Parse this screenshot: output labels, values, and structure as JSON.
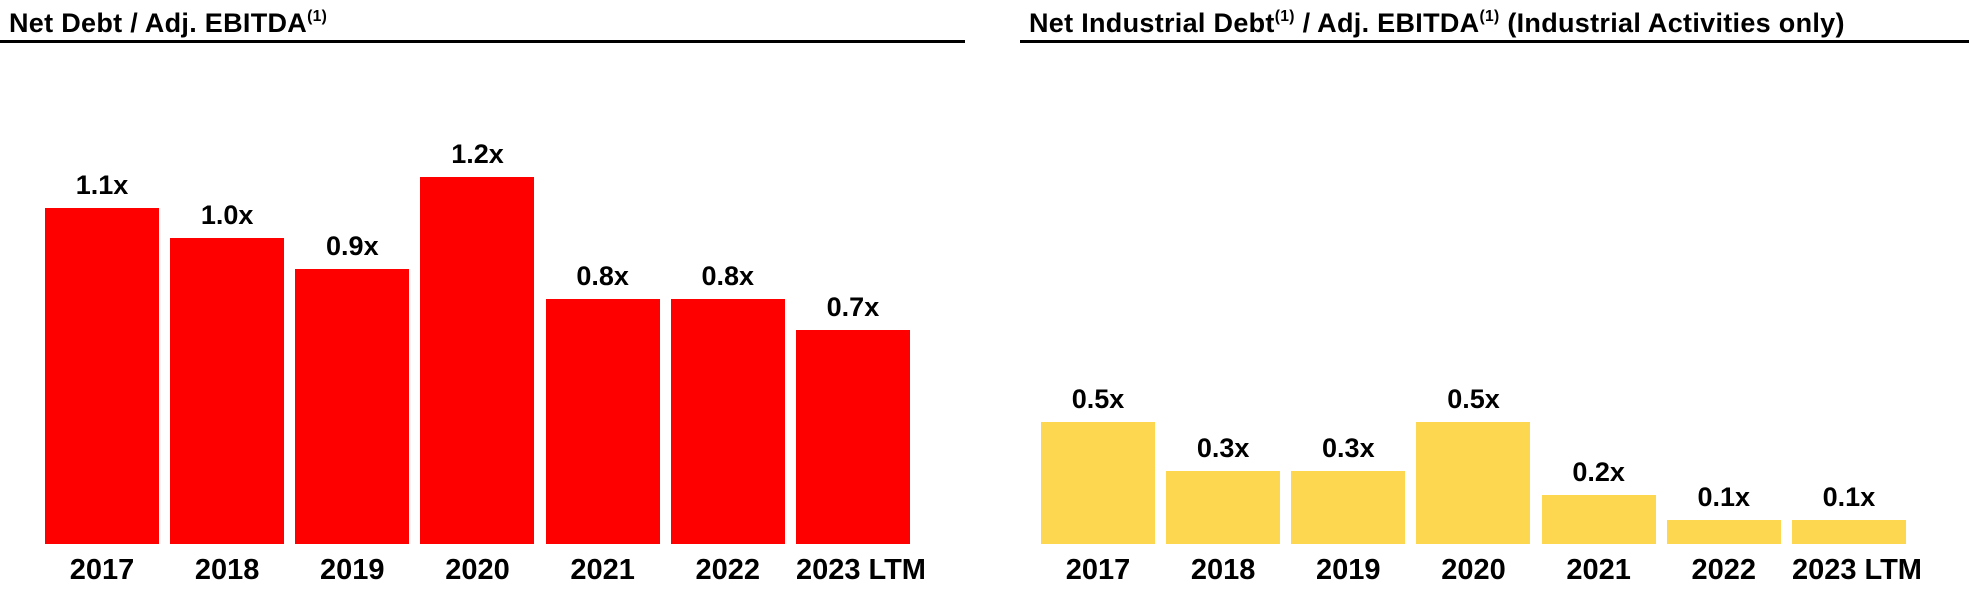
{
  "slide": {
    "background_color": "#FFFFFF",
    "text_color": "#000000"
  },
  "chart_data": [
    {
      "type": "bar",
      "title": "Net Debt / Adj. EBITDA(1)",
      "title_segments": [
        {
          "text": "Net Debt / Adj. EBITDA",
          "sup": false
        },
        {
          "text": "(1)",
          "sup": true
        }
      ],
      "categories": [
        "2017",
        "2018",
        "2019",
        "2020",
        "2021",
        "2022",
        "2023 LTM"
      ],
      "values": [
        1.1,
        1.0,
        0.9,
        1.2,
        0.8,
        0.8,
        0.7
      ],
      "value_labels": [
        "1.1x",
        "1.0x",
        "0.9x",
        "1.2x",
        "0.8x",
        "0.8x",
        "0.7x"
      ],
      "bar_color": "#FF0000",
      "ylim": [
        0,
        1.42
      ],
      "grid": false,
      "legend": "none",
      "y_axis_visible": false,
      "value_label_position": "above-bar"
    },
    {
      "type": "bar",
      "title": "Net Industrial Debt(1) / Adj. EBITDA(1) (Industrial Activities only)",
      "title_segments": [
        {
          "text": "Net Industrial Debt",
          "sup": false
        },
        {
          "text": "(1)",
          "sup": true
        },
        {
          "text": " / Adj. EBITDA",
          "sup": false
        },
        {
          "text": "(1)",
          "sup": true
        },
        {
          "text": " (Industrial Activities only)",
          "sup": false
        }
      ],
      "categories": [
        "2017",
        "2018",
        "2019",
        "2020",
        "2021",
        "2022",
        "2023 LTM"
      ],
      "values": [
        0.5,
        0.3,
        0.3,
        0.5,
        0.2,
        0.1,
        0.1
      ],
      "value_labels": [
        "0.5x",
        "0.3x",
        "0.3x",
        "0.5x",
        "0.2x",
        "0.1x",
        "0.1x"
      ],
      "bar_color": "#FDD750",
      "ylim": [
        0,
        1.78
      ],
      "grid": false,
      "legend": "none",
      "y_axis_visible": false,
      "value_label_position": "above-bar"
    }
  ]
}
